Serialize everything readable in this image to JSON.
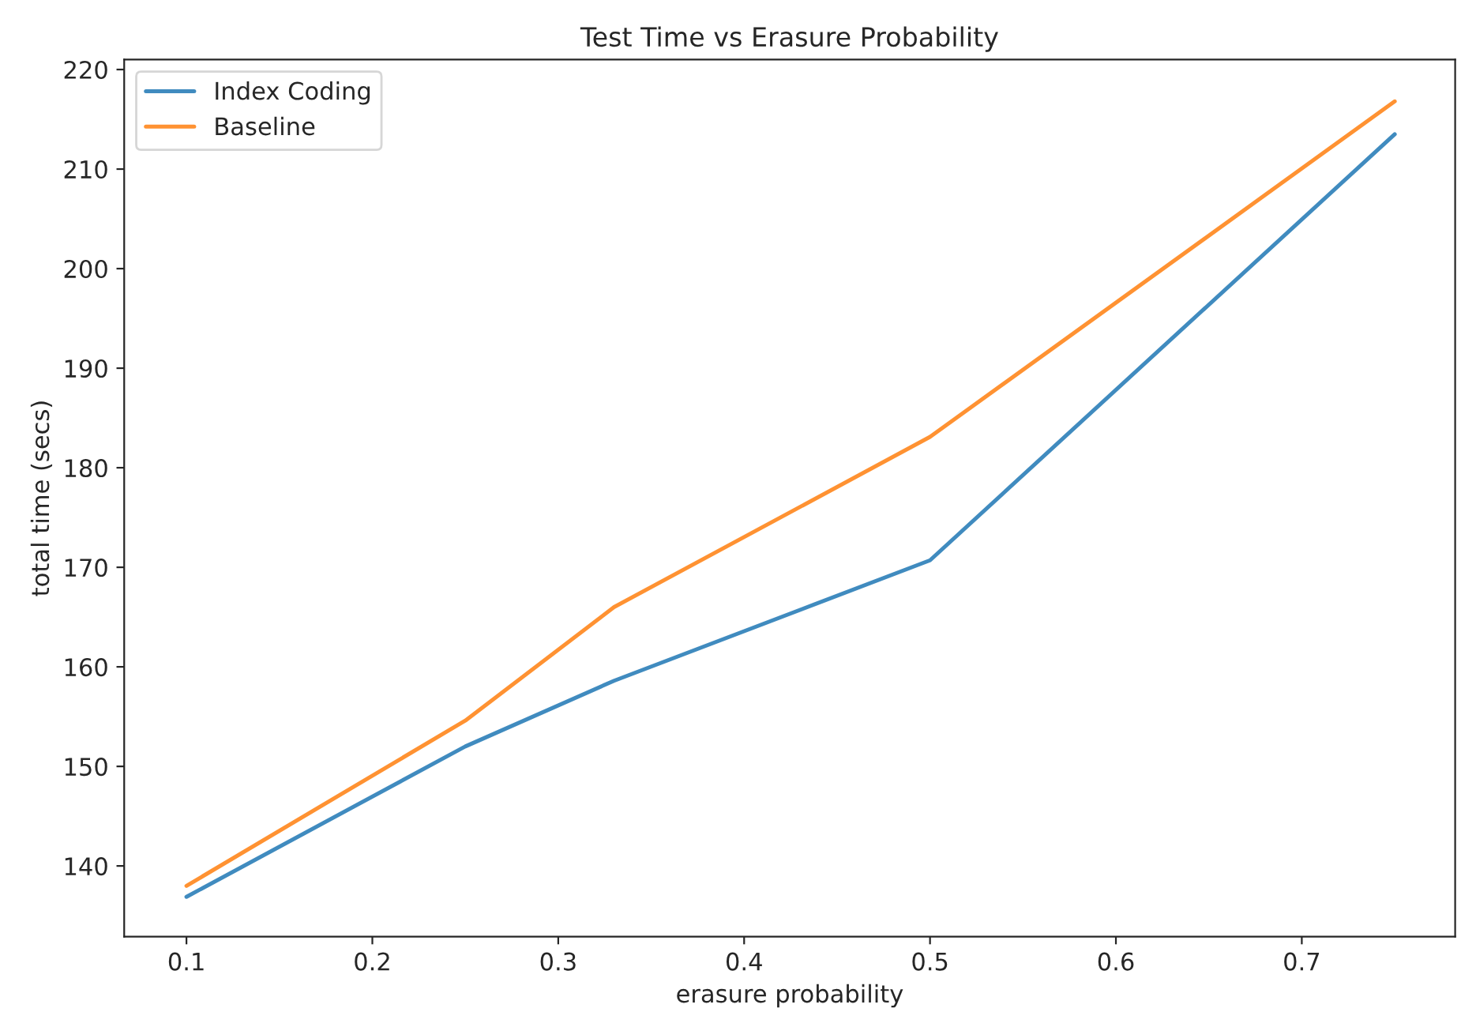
{
  "chart_data": {
    "type": "line",
    "title": "Test Time vs Erasure Probability",
    "xlabel": "erasure probability",
    "ylabel": "total time (secs)",
    "x": [
      0.1,
      0.25,
      0.33,
      0.5,
      0.75
    ],
    "series": [
      {
        "name": "Index Coding",
        "color": "#1f77b4",
        "values": [
          136.9,
          152.0,
          158.6,
          170.7,
          213.5
        ]
      },
      {
        "name": "Baseline",
        "color": "#ff7f0e",
        "values": [
          138.0,
          154.6,
          166.0,
          183.1,
          216.8
        ]
      }
    ],
    "xlim": [
      0.0665,
      0.7825
    ],
    "ylim": [
      132.9,
      221.0
    ],
    "xticks": [
      0.1,
      0.2,
      0.3,
      0.4,
      0.5,
      0.6,
      0.7
    ],
    "yticks": [
      140,
      150,
      160,
      170,
      180,
      190,
      200,
      210,
      220
    ],
    "grid": false,
    "legend": "top left",
    "line_style": "solid",
    "marker": "none"
  }
}
